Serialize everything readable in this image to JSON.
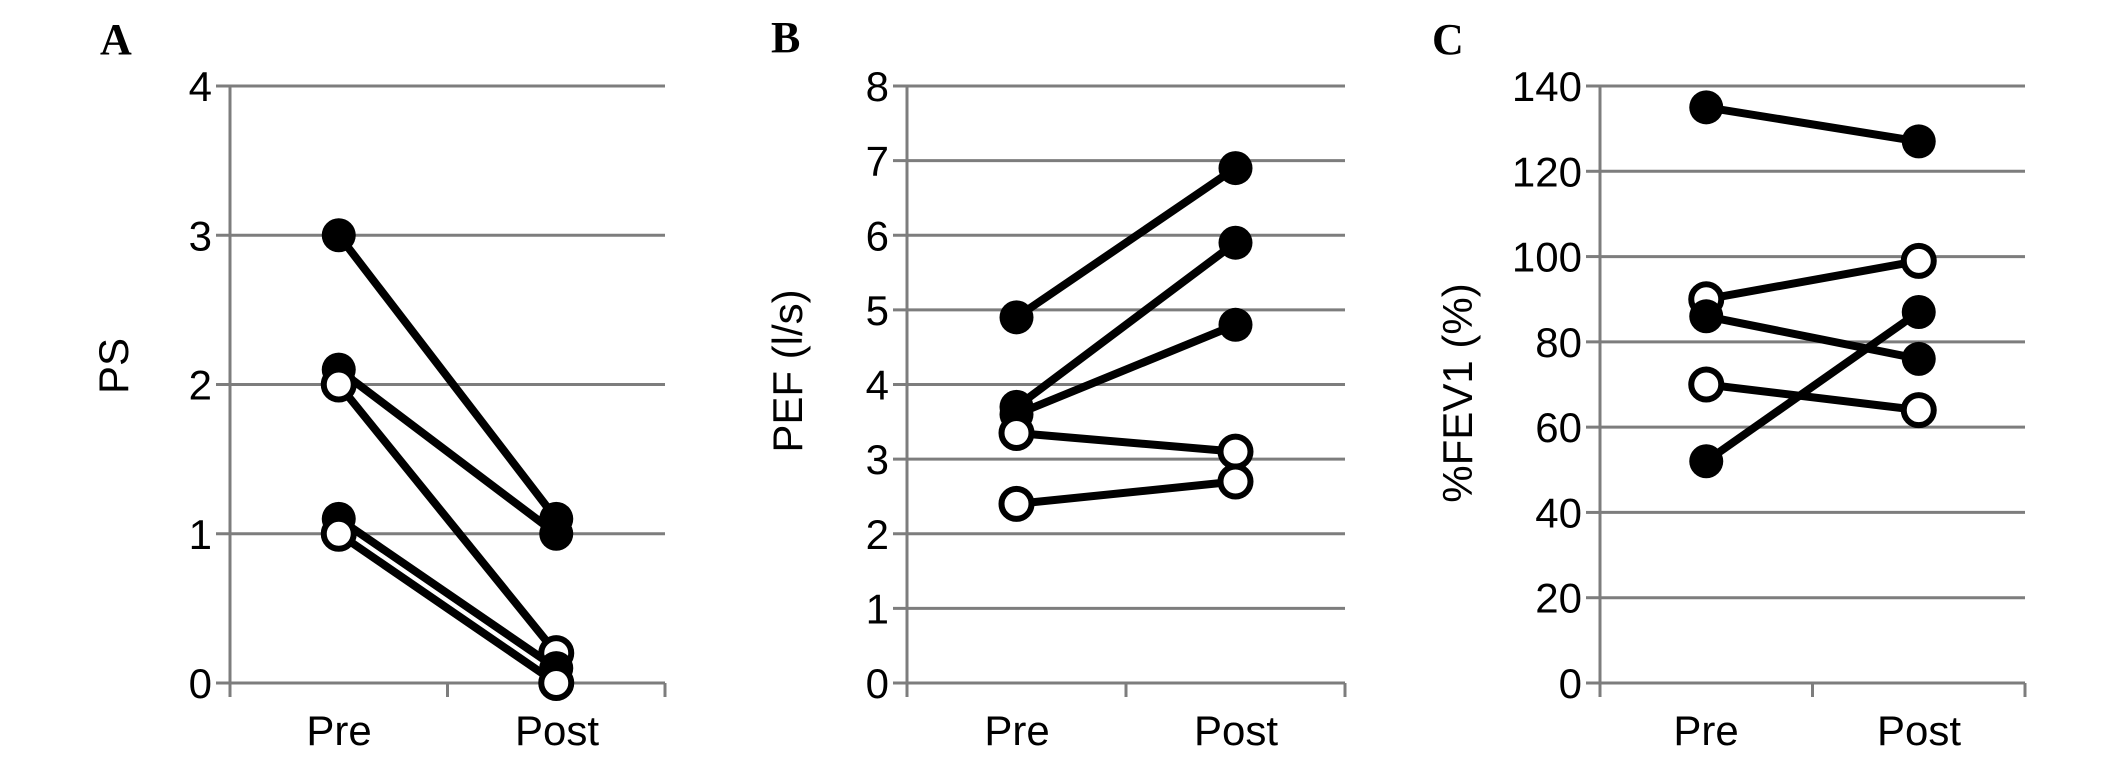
{
  "figure": {
    "background": "#ffffff",
    "grid_color": "#7d7d7d",
    "data_color": "#000000",
    "marker_open_fill": "#ffffff"
  },
  "chart_data": [
    {
      "type": "line",
      "panel_label": "A",
      "ylabel": "PS",
      "xlabel": "",
      "x_categories": [
        "Pre",
        "Post"
      ],
      "ylim": [
        0,
        4
      ],
      "yticks": [
        0,
        1,
        2,
        3,
        4
      ],
      "grid": true,
      "legend_position": "none",
      "marker_legend": {
        "filled": "filled-circle-group",
        "open": "open-circle-group"
      },
      "series": [
        {
          "marker": "filled",
          "values": [
            3.0,
            1.1
          ]
        },
        {
          "marker": "filled",
          "values": [
            2.1,
            1.0
          ]
        },
        {
          "marker": "open",
          "values": [
            2.0,
            0.2
          ]
        },
        {
          "marker": "filled",
          "values": [
            1.1,
            0.1
          ]
        },
        {
          "marker": "open",
          "values": [
            1.0,
            0.0
          ]
        }
      ]
    },
    {
      "type": "line",
      "panel_label": "B",
      "ylabel": "PEF (l/s)",
      "xlabel": "",
      "x_categories": [
        "Pre",
        "Post"
      ],
      "ylim": [
        0,
        8
      ],
      "yticks": [
        0,
        1,
        2,
        3,
        4,
        5,
        6,
        7,
        8
      ],
      "grid": true,
      "legend_position": "none",
      "marker_legend": {
        "filled": "filled-circle-group",
        "open": "open-circle-group"
      },
      "series": [
        {
          "marker": "filled",
          "values": [
            4.9,
            6.9
          ]
        },
        {
          "marker": "filled",
          "values": [
            3.7,
            5.9
          ]
        },
        {
          "marker": "filled",
          "values": [
            3.6,
            4.8
          ]
        },
        {
          "marker": "open",
          "values": [
            3.35,
            3.1
          ]
        },
        {
          "marker": "open",
          "values": [
            2.4,
            2.7
          ]
        }
      ]
    },
    {
      "type": "line",
      "panel_label": "C",
      "ylabel": "%FEV1 (%)",
      "xlabel": "",
      "x_categories": [
        "Pre",
        "Post"
      ],
      "ylim": [
        0,
        140
      ],
      "yticks": [
        0,
        20,
        40,
        60,
        80,
        100,
        120,
        140
      ],
      "grid": true,
      "legend_position": "none",
      "marker_legend": {
        "filled": "filled-circle-group",
        "open": "open-circle-group"
      },
      "series": [
        {
          "marker": "filled",
          "values": [
            135,
            127
          ]
        },
        {
          "marker": "open",
          "values": [
            90,
            99
          ]
        },
        {
          "marker": "filled",
          "values": [
            86,
            76
          ]
        },
        {
          "marker": "open",
          "values": [
            70,
            64
          ]
        },
        {
          "marker": "filled",
          "values": [
            52,
            87
          ]
        }
      ]
    }
  ]
}
